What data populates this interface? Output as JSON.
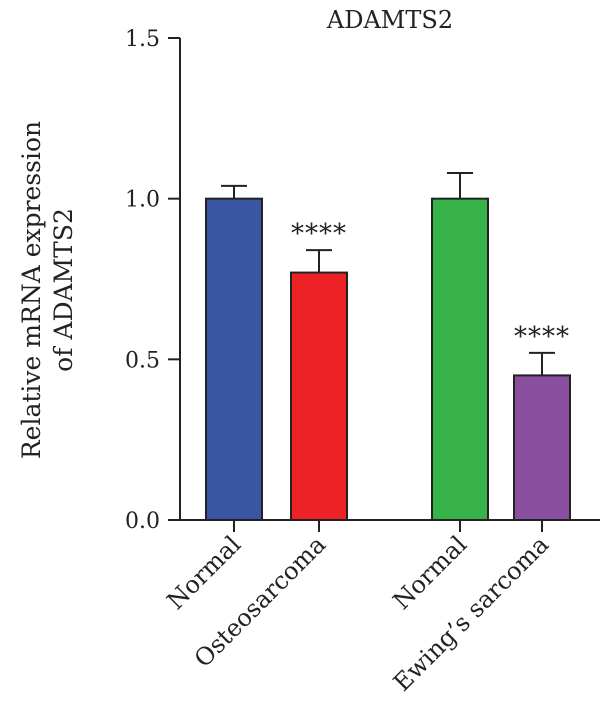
{
  "chart_data": {
    "type": "bar",
    "title": "ADAMTS2",
    "ylabel_lines": [
      "Relative mRNA expression",
      "of ADAMTS2"
    ],
    "xlabel": "",
    "ylim": [
      0,
      1.5
    ],
    "yticks": [
      0.0,
      0.5,
      1.0,
      1.5
    ],
    "ytick_labels": [
      "0.0",
      "0.5",
      "1.0",
      "1.5"
    ],
    "grid": false,
    "legend": "none",
    "bars": [
      {
        "category": "Normal",
        "value": 1.0,
        "error": 0.04,
        "color": "#3a55a4",
        "significance": ""
      },
      {
        "category": "Osteosarcoma",
        "value": 0.77,
        "error": 0.07,
        "color": "#ec2227",
        "significance": "****"
      },
      {
        "category": "Normal",
        "value": 1.0,
        "error": 0.08,
        "color": "#37b34a",
        "significance": ""
      },
      {
        "category": "Ewing’s sarcoma",
        "value": 0.45,
        "error": 0.07,
        "color": "#8b4f9f",
        "significance": "****"
      }
    ]
  }
}
